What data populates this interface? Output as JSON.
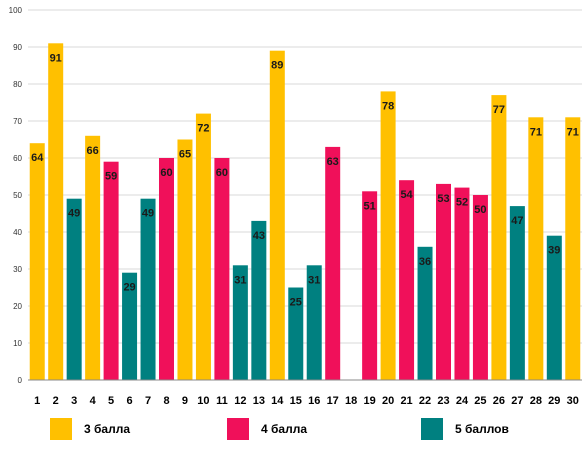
{
  "chart_data": {
    "type": "bar",
    "categories": [
      "1",
      "2",
      "3",
      "4",
      "5",
      "6",
      "7",
      "8",
      "9",
      "10",
      "11",
      "12",
      "13",
      "14",
      "15",
      "16",
      "17",
      "18",
      "19",
      "20",
      "21",
      "22",
      "23",
      "24",
      "25",
      "26",
      "27",
      "28",
      "29",
      "30"
    ],
    "values": [
      64,
      91,
      49,
      66,
      59,
      29,
      49,
      60,
      65,
      72,
      60,
      31,
      43,
      89,
      25,
      31,
      63,
      null,
      51,
      78,
      54,
      36,
      53,
      52,
      50,
      77,
      47,
      71,
      39,
      71
    ],
    "groups": [
      "g3",
      "g3",
      "g5",
      "g3",
      "g4",
      "g5",
      "g5",
      "g4",
      "g3",
      "g3",
      "g4",
      "g5",
      "g5",
      "g3",
      "g5",
      "g5",
      "g4",
      null,
      "g4",
      "g3",
      "g4",
      "g5",
      "g4",
      "g4",
      "g4",
      "g3",
      "g5",
      "g3",
      "g5",
      "g3"
    ],
    "series": [
      {
        "key": "g3",
        "name": "3 балла",
        "color": "#FFC000"
      },
      {
        "key": "g4",
        "name": "4 балла",
        "color": "#F0105A"
      },
      {
        "key": "g5",
        "name": "5 баллов",
        "color": "#008080"
      }
    ],
    "yticks": [
      0,
      10,
      20,
      30,
      40,
      50,
      60,
      70,
      80,
      90,
      100
    ],
    "ylim": [
      0,
      100
    ],
    "grid": true,
    "legend_position": "bottom",
    "title": "",
    "xlabel": "",
    "ylabel": ""
  },
  "legend": {
    "item_1": "3 балла",
    "item_2": "4 балла",
    "item_3": "5 баллов"
  }
}
